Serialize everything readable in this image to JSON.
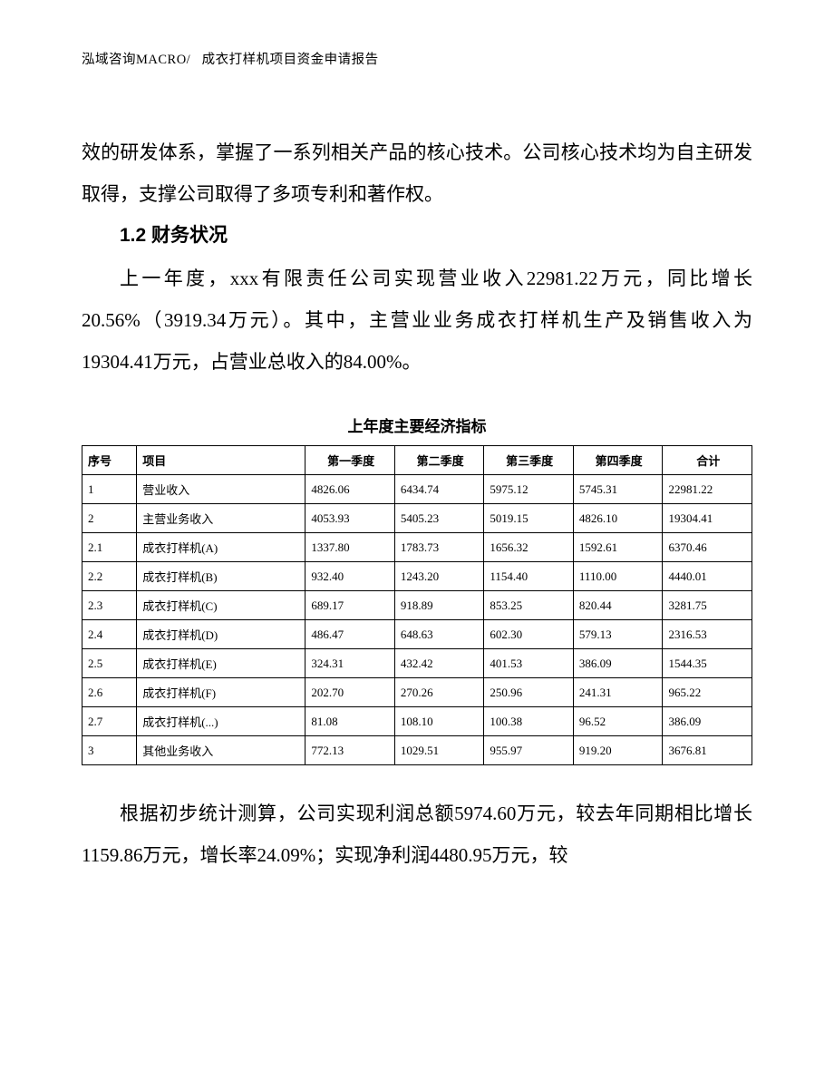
{
  "header": {
    "left": "泓域咨询MACRO/",
    "right": "成衣打样机项目资金申请报告"
  },
  "paragraphs": {
    "p1": "效的研发体系，掌握了一系列相关产品的核心技术。公司核心技术均为自主研发取得，支撑公司取得了多项专利和著作权。",
    "section_title": "1.2 财务状况",
    "p2": "上一年度，xxx有限责任公司实现营业收入22981.22万元，同比增长20.56%（3919.34万元）。其中，主营业业务成衣打样机生产及销售收入为19304.41万元，占营业总收入的84.00%。",
    "table_title": "上年度主要经济指标",
    "p3": "根据初步统计测算，公司实现利润总额5974.60万元，较去年同期相比增长1159.86万元，增长率24.09%；实现净利润4480.95万元，较"
  },
  "table": {
    "headers": [
      "序号",
      "项目",
      "第一季度",
      "第二季度",
      "第三季度",
      "第四季度",
      "合计"
    ],
    "rows": [
      [
        "1",
        "营业收入",
        "4826.06",
        "6434.74",
        "5975.12",
        "5745.31",
        "22981.22"
      ],
      [
        "2",
        "主营业务收入",
        "4053.93",
        "5405.23",
        "5019.15",
        "4826.10",
        "19304.41"
      ],
      [
        "2.1",
        "成衣打样机(A)",
        "1337.80",
        "1783.73",
        "1656.32",
        "1592.61",
        "6370.46"
      ],
      [
        "2.2",
        "成衣打样机(B)",
        "932.40",
        "1243.20",
        "1154.40",
        "1110.00",
        "4440.01"
      ],
      [
        "2.3",
        "成衣打样机(C)",
        "689.17",
        "918.89",
        "853.25",
        "820.44",
        "3281.75"
      ],
      [
        "2.4",
        "成衣打样机(D)",
        "486.47",
        "648.63",
        "602.30",
        "579.13",
        "2316.53"
      ],
      [
        "2.5",
        "成衣打样机(E)",
        "324.31",
        "432.42",
        "401.53",
        "386.09",
        "1544.35"
      ],
      [
        "2.6",
        "成衣打样机(F)",
        "202.70",
        "270.26",
        "250.96",
        "241.31",
        "965.22"
      ],
      [
        "2.7",
        "成衣打样机(...)",
        "81.08",
        "108.10",
        "100.38",
        "96.52",
        "386.09"
      ],
      [
        "3",
        "其他业务收入",
        "772.13",
        "1029.51",
        "955.97",
        "919.20",
        "3676.81"
      ]
    ]
  }
}
